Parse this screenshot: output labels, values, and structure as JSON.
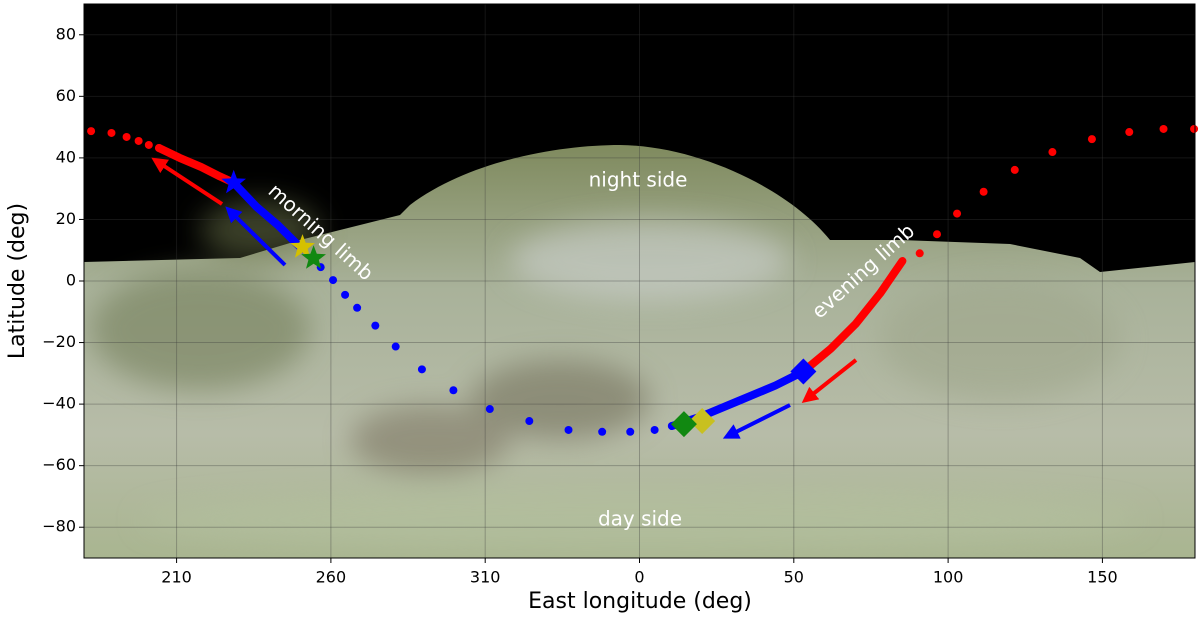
{
  "chart_data": {
    "type": "scatter",
    "xlabel": "East longitude (deg)",
    "ylabel": "Latitude (deg)",
    "xlim": [
      180,
      540
    ],
    "ylim": [
      -90,
      90
    ],
    "xticks": [
      210,
      260,
      310,
      {
        "value": 360,
        "label": "0"
      },
      {
        "value": 410,
        "label": "50"
      },
      {
        "value": 460,
        "label": "100"
      },
      {
        "value": 510,
        "label": "150"
      }
    ],
    "yticks": [
      {
        "value": -80,
        "label": "−80"
      },
      {
        "value": -60,
        "label": "−60"
      },
      {
        "value": -40,
        "label": "−40"
      },
      {
        "value": -20,
        "label": "−20"
      },
      0,
      20,
      40,
      60,
      80
    ],
    "grid": true,
    "annotations": [
      "night side",
      "morning limb",
      "evening limb",
      "day side"
    ],
    "series": [
      {
        "color": "#ff0000",
        "marker": "dot",
        "x": [
          182.3,
          188.9,
          193.8,
          197.7,
          201,
          204.3
        ],
        "values": [
          48.7,
          48.1,
          46.8,
          45.5,
          44.2,
          43.2
        ]
      },
      {
        "color": "#ff0000",
        "marker": "line",
        "x": [
          204.3,
          211,
          218,
          224,
          228.5
        ],
        "values": [
          43.2,
          40,
          37,
          34,
          31.9
        ]
      },
      {
        "color": "#0000ff",
        "marker": "line",
        "x": [
          228.5,
          236,
          243,
          248,
          250.8
        ],
        "values": [
          31.9,
          24,
          18,
          13,
          10.3
        ]
      },
      {
        "color": "#0000ff",
        "marker": "dot",
        "x": [
          256.7,
          260.7,
          264.6,
          268.5,
          274.4,
          281,
          289.5,
          299.7,
          311.5,
          324.3,
          337,
          347.9,
          357,
          364.9,
          370.5
        ],
        "values": [
          4.5,
          0.3,
          -4.5,
          -8.7,
          -14.5,
          -21.3,
          -28.7,
          -35.5,
          -41.6,
          -45.5,
          -48.4,
          -49,
          -49,
          -48.4,
          -47.1
        ]
      },
      {
        "color": "#0000ff",
        "marker": "line",
        "x": [
          370.5,
          380,
          392,
          404,
          413.1
        ],
        "values": [
          -47.1,
          -44,
          -39,
          -34,
          -29.4
        ]
      },
      {
        "color": "#ff0000",
        "marker": "line",
        "x": [
          413.1,
          422,
          430,
          438,
          445.2
        ],
        "values": [
          -29.4,
          -22,
          -14,
          -4,
          6.5
        ]
      },
      {
        "color": "#ff0000",
        "marker": "dot",
        "x": [
          450.8,
          456.4,
          462.9,
          471.5,
          481.6,
          493.8,
          506.6,
          518.7,
          529.8,
          539.7
        ],
        "values": [
          9,
          15.2,
          21.9,
          29,
          36.1,
          41.9,
          46.1,
          48.4,
          49.4,
          49.4
        ]
      },
      {
        "color": "#0000ff",
        "marker": "star",
        "x": [
          228.5
        ],
        "values": [
          31.9
        ]
      },
      {
        "color": "#d4c000",
        "marker": "star",
        "x": [
          250.8
        ],
        "values": [
          11
        ]
      },
      {
        "color": "#118811",
        "marker": "star",
        "x": [
          254.4
        ],
        "values": [
          7.4
        ]
      },
      {
        "color": "#0000ff",
        "marker": "diamond",
        "x": [
          413.1
        ],
        "values": [
          -29.4
        ]
      },
      {
        "color": "#c8c020",
        "marker": "diamond",
        "x": [
          380.3
        ],
        "values": [
          -45.5
        ]
      },
      {
        "color": "#118811",
        "marker": "diamond",
        "x": [
          374.4
        ],
        "values": [
          -46.5
        ]
      }
    ]
  }
}
